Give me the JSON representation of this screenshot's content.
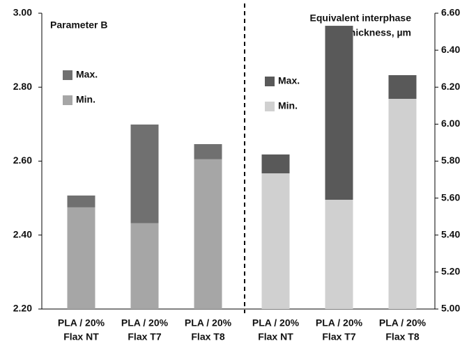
{
  "chart_data": [
    {
      "type": "bar",
      "title": [
        "Parameter B"
      ],
      "axis_side": "left",
      "categories": [
        [
          "PLA / 20%",
          "Flax NT"
        ],
        [
          "PLA / 20%",
          "Flax T7"
        ],
        [
          "PLA / 20%",
          "Flax T8"
        ]
      ],
      "series": [
        {
          "name": "Max.",
          "color": "#707070",
          "values": [
            2.507,
            2.699,
            2.646
          ]
        },
        {
          "name": "Min.",
          "color": "#a6a6a6",
          "values": [
            2.475,
            2.432,
            2.605
          ]
        }
      ],
      "ylim": [
        2.2,
        3.0
      ],
      "yticks": [
        {
          "value": 2.2,
          "label": "2.20"
        },
        {
          "value": 2.4,
          "label": "2.40"
        },
        {
          "value": 2.6,
          "label": "2.60"
        },
        {
          "value": 2.8,
          "label": "2.80"
        },
        {
          "value": 3.0,
          "label": "3.00"
        }
      ]
    },
    {
      "type": "bar",
      "title": [
        "Equivalent interphase",
        "thickness, µm"
      ],
      "axis_side": "right",
      "categories": [
        [
          "PLA / 20%",
          "Flax NT"
        ],
        [
          "PLA / 20%",
          "Flax T7"
        ],
        [
          "PLA / 20%",
          "Flax T8"
        ]
      ],
      "series": [
        {
          "name": "Max.",
          "color": "#595959",
          "values": [
            5.836,
            6.532,
            6.265
          ]
        },
        {
          "name": "Min.",
          "color": "#d0d0d0",
          "values": [
            5.734,
            5.591,
            6.137
          ]
        }
      ],
      "ylim": [
        5.0,
        6.6
      ],
      "yticks": [
        {
          "value": 5.0,
          "label": "5.00"
        },
        {
          "value": 5.2,
          "label": "5.20"
        },
        {
          "value": 5.4,
          "label": "5.40"
        },
        {
          "value": 5.6,
          "label": "5.60"
        },
        {
          "value": 5.8,
          "label": "5.80"
        },
        {
          "value": 6.0,
          "label": "6.00"
        },
        {
          "value": 6.2,
          "label": "6.20"
        },
        {
          "value": 6.4,
          "label": "6.40"
        },
        {
          "value": 6.6,
          "label": "6.60"
        }
      ]
    }
  ]
}
